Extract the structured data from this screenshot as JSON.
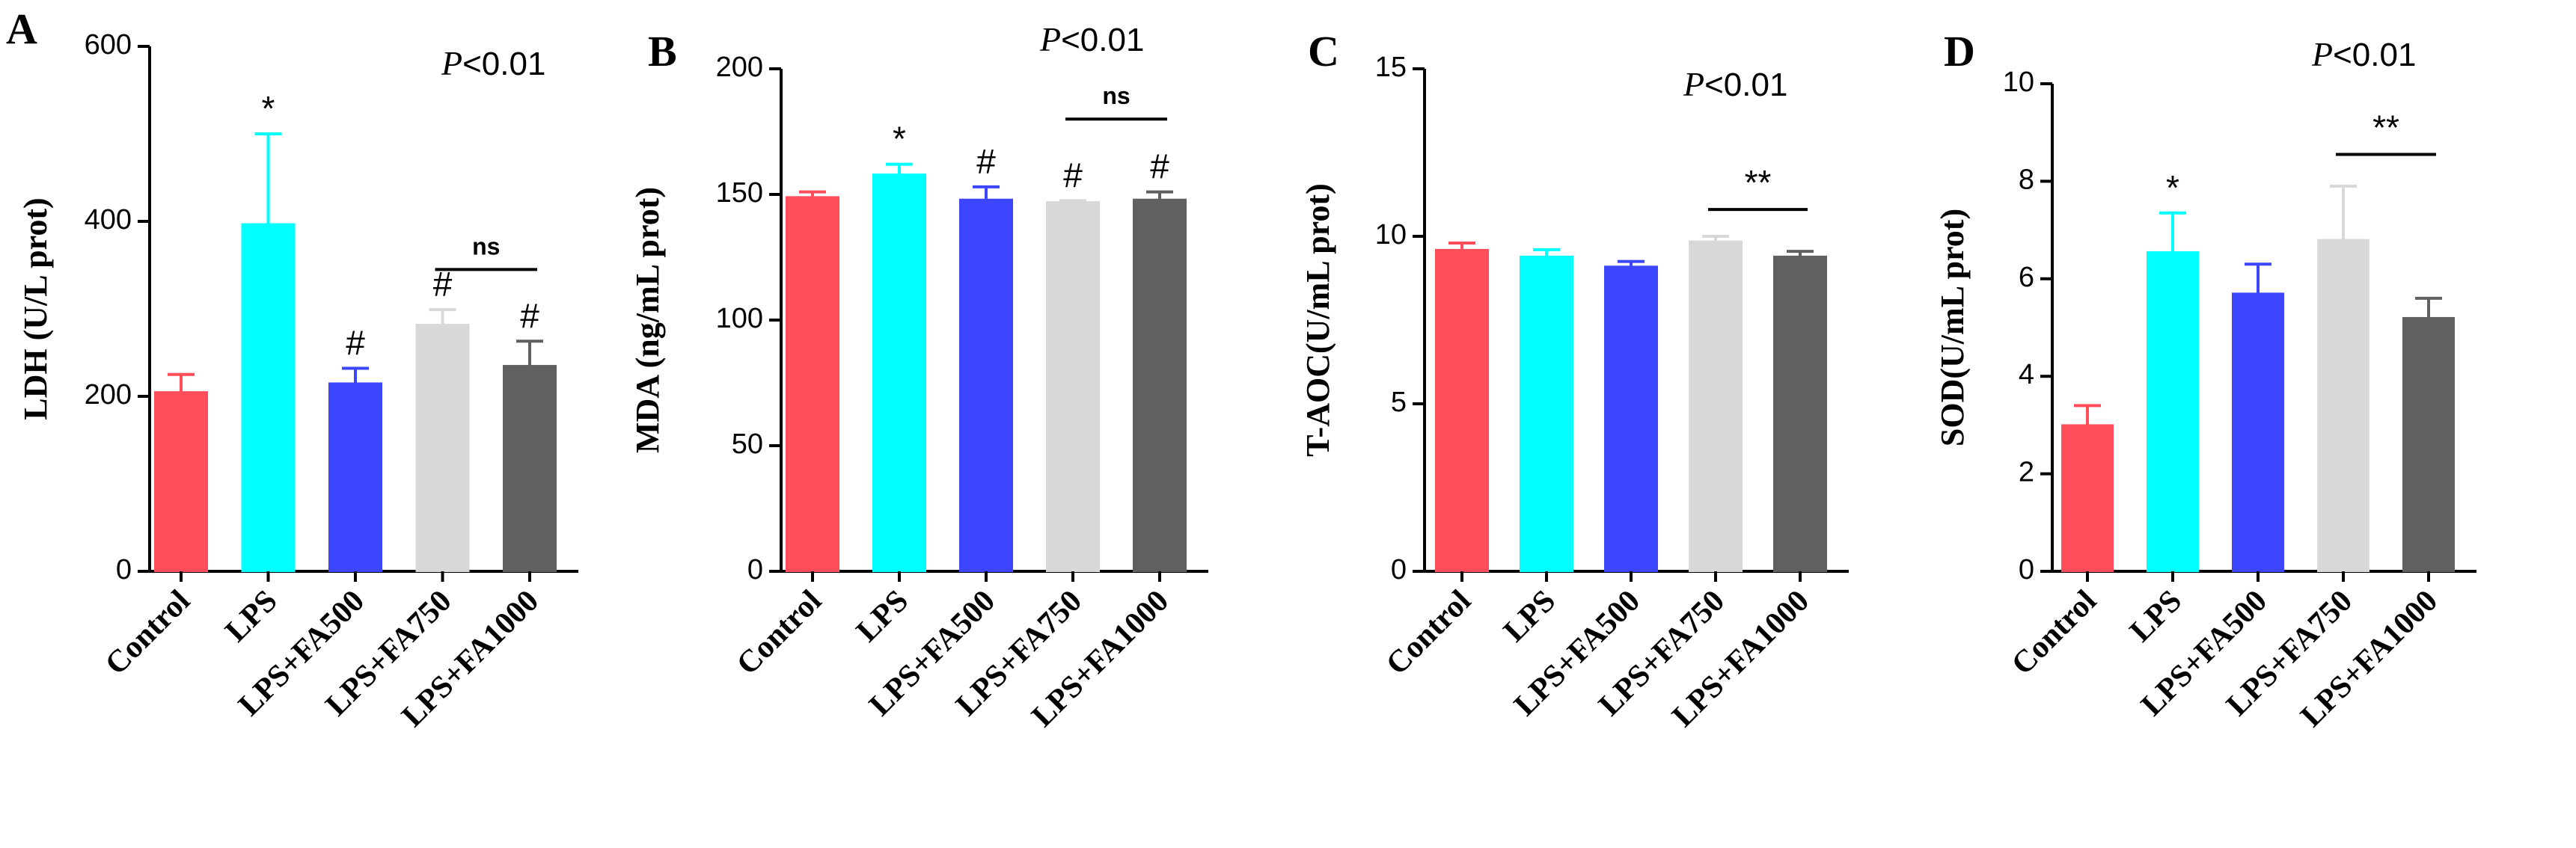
{
  "pvalue_prefix": "P",
  "colors": {
    "Control": "#ff4d5a",
    "LPS": "#00ffff",
    "LPS+FA500": "#3c46ff",
    "LPS+FA750": "#d8d8d8",
    "LPS+FA1000": "#606060",
    "axis": "#000000"
  },
  "chart_data": [
    {
      "panel": "A",
      "type": "bar",
      "ylabel": "LDH (U/L prot)",
      "ylim": [
        0,
        600
      ],
      "yticks": [
        "0",
        "200",
        "400",
        "600"
      ],
      "ytick_values": [
        0,
        200,
        400,
        600
      ],
      "categories": [
        "Control",
        "LPS",
        "LPS+FA500",
        "LPS+FA750",
        "LPS+FA1000"
      ],
      "values": [
        205,
        397,
        215,
        282,
        235
      ],
      "errors": [
        20,
        103,
        17,
        17,
        28
      ],
      "marks": [
        "",
        "*",
        "#",
        "#",
        "#"
      ],
      "pvalue": "<0.01",
      "bracket": {
        "from": 3,
        "to": 4,
        "label": "ns",
        "y": 345
      }
    },
    {
      "panel": "B",
      "type": "bar",
      "ylabel": "MDA (ng/mL prot)",
      "ylim": [
        0,
        200
      ],
      "yticks": [
        "0",
        "50",
        "100",
        "150",
        "200"
      ],
      "ytick_values": [
        0,
        50,
        100,
        150,
        200
      ],
      "categories": [
        "Control",
        "LPS",
        "LPS+FA500",
        "LPS+FA750",
        "LPS+FA1000"
      ],
      "values": [
        149,
        158,
        148,
        147,
        148
      ],
      "errors": [
        2,
        4,
        5,
        0.5,
        3
      ],
      "marks": [
        "",
        "*",
        "#",
        "#",
        "#"
      ],
      "pvalue": "<0.01",
      "bracket": {
        "from": 3,
        "to": 4,
        "label": "ns",
        "y": 180
      }
    },
    {
      "panel": "C",
      "type": "bar",
      "ylabel": "T-AOC(U/mL prot)",
      "ylim": [
        0,
        15
      ],
      "yticks": [
        "0",
        "5",
        "10",
        "15"
      ],
      "ytick_values": [
        0,
        5,
        10,
        15
      ],
      "categories": [
        "Control",
        "LPS",
        "LPS+FA500",
        "LPS+FA750",
        "LPS+FA1000"
      ],
      "values": [
        9.6,
        9.4,
        9.1,
        9.85,
        9.4
      ],
      "errors": [
        0.2,
        0.2,
        0.15,
        0.15,
        0.15
      ],
      "marks": [
        "",
        "",
        "",
        "",
        ""
      ],
      "pvalue": "<0.01",
      "bracket": {
        "from": 3,
        "to": 4,
        "label": "**",
        "y": 10.8
      }
    },
    {
      "panel": "D",
      "type": "bar",
      "ylabel": "SOD(U/mL prot)",
      "ylim": [
        0,
        10
      ],
      "yticks": [
        "0",
        "2",
        "4",
        "6",
        "8",
        "10"
      ],
      "ytick_values": [
        0,
        2,
        4,
        6,
        8,
        10
      ],
      "categories": [
        "Control",
        "LPS",
        "LPS+FA500",
        "LPS+FA750",
        "LPS+FA1000"
      ],
      "values": [
        3.0,
        6.55,
        5.7,
        6.8,
        5.2
      ],
      "errors": [
        0.4,
        0.8,
        0.6,
        1.1,
        0.4
      ],
      "marks": [
        "",
        "*",
        "",
        "",
        ""
      ],
      "pvalue": "<0.01",
      "bracket": {
        "from": 3,
        "to": 4,
        "label": "**",
        "y": 8.55
      }
    }
  ]
}
